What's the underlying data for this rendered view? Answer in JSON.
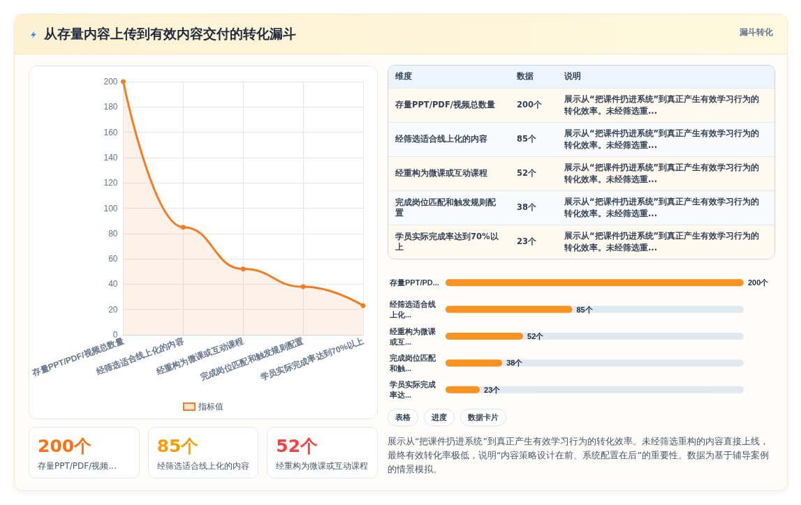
{
  "chart_data": [
    {
      "type": "other",
      "title": "从存量内容上传到有效内容交付的转化漏斗",
      "annotations": [
        "漏斗转化"
      ]
    },
    {
      "type": "line",
      "categories": [
        "存量PPT/PDF/视频总数量",
        "经筛选适合线上化的内容",
        "经重构为微课或互动课程",
        "完成岗位匹配和触发规则配置",
        "学员实际完成率达到70%以上"
      ],
      "series": [
        {
          "name": "指标值",
          "color": "#f47b20",
          "type": "area",
          "values": [
            200,
            85,
            52,
            38,
            23
          ]
        }
      ],
      "ylim": [
        0,
        200
      ],
      "yticks": [
        0,
        20,
        40,
        60,
        80,
        100,
        120,
        140,
        160,
        180,
        200
      ],
      "grid": true,
      "legend": "bottom",
      "marker": "circle"
    },
    {
      "type": "other",
      "categories": [
        "存量PPT/PDF/视频总数量",
        "经筛选适合线上化的内容",
        "经重构为微课或互动课程",
        "完成岗位匹配和触发规则配置",
        "学员实际完成率达到70%以上"
      ],
      "value_labels": [
        "200个",
        "85个",
        "52个",
        "38个",
        "23个"
      ],
      "annotations": [
        "维度",
        "数据",
        "说明",
        "展示从“把课件扔进系统”到真正产生有效学习行为的转化效率。未经筛选重...",
        "展示从“把课件扔进系统”到真正产生有效学习行为的转化效率。未经筛选重...",
        "展示从“把课件扔进系统”到真正产生有效学习行为的转化效率。未经筛选重...",
        "展示从“把课件扔进系统”到真正产生有效学习行为的转化效率。未经筛选重...",
        "展示从“把课件扔进系统”到真正产生有效学习行为的转化效率。未经筛选重..."
      ]
    },
    {
      "type": "bar",
      "orientation": "horizontal",
      "categories": [
        "存量PPT/PD...",
        "经筛选适合线上化...",
        "经重构为微课或互...",
        "完成岗位匹配和触...",
        "学员实际完成率达..."
      ],
      "values": [
        200,
        85,
        52,
        38,
        23
      ],
      "value_labels": [
        "200个",
        "85个",
        "52个",
        "38个",
        "23个"
      ],
      "color": "#f7931e",
      "tick_labels": "y"
    },
    {
      "type": "other",
      "categories": [
        "存量PPT/PDF/视频...",
        "经筛选适合线上化的内容",
        "经重构为微课或互动课程"
      ],
      "value_labels": [
        "200个",
        "85个",
        "52个"
      ]
    },
    {
      "type": "other",
      "categories": [
        "表格",
        "进度",
        "数据卡片"
      ],
      "annotations": [
        "展示从“把课件扔进系统”到真正产生有效学习行为的转化效率。未经筛选重构的内容直接上线，最终有效转化率极低，说明“内容策略设计在前、系统配置在后”的重要性。数据为基于辅导案例的情景模拟。"
      ]
    }
  ]
}
